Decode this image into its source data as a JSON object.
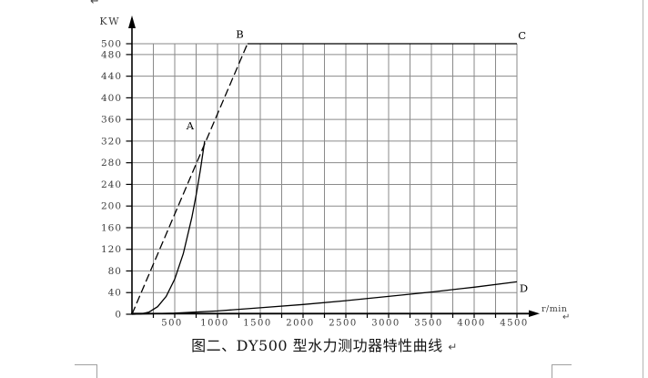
{
  "page": {
    "top_paragraph_mark": "↵",
    "caption": "图二、DY500 型水力测功器特性曲线",
    "caption_paragraph_mark": "↵",
    "axis_paragraph_mark": "↵"
  },
  "chart_data": {
    "type": "line",
    "title": "图二、DY500 型水力测功器特性曲线",
    "xlabel": "r/min",
    "ylabel": "KW",
    "xlim": [
      0,
      4500
    ],
    "ylim": [
      0,
      500
    ],
    "x_tick_labels": [
      500,
      1000,
      1500,
      2000,
      2500,
      3000,
      3500,
      4000,
      4500
    ],
    "x_minor_grid_step": 250,
    "y_ticks": [
      0,
      40,
      80,
      120,
      160,
      200,
      240,
      280,
      320,
      360,
      400,
      440,
      480,
      500
    ],
    "grid": true,
    "legend": "none",
    "series": [
      {
        "name": "A",
        "description": "full-water power curve",
        "style": "solid",
        "points": [
          [
            0,
            0
          ],
          [
            100,
            0.5
          ],
          [
            200,
            4
          ],
          [
            300,
            14
          ],
          [
            400,
            33
          ],
          [
            500,
            65
          ],
          [
            600,
            112
          ],
          [
            700,
            179
          ],
          [
            750,
            220
          ],
          [
            800,
            267
          ],
          [
            850,
            320
          ]
        ]
      },
      {
        "name": "B",
        "description": "constant max torque line",
        "style": "dashed",
        "points": [
          [
            0,
            0
          ],
          [
            1350,
            500
          ]
        ]
      },
      {
        "name": "C",
        "description": "constant max power line 500 KW",
        "style": "solid",
        "points": [
          [
            1350,
            500
          ],
          [
            4500,
            500
          ]
        ]
      },
      {
        "name": "D",
        "description": "minimum water residual curve",
        "style": "solid",
        "points": [
          [
            0,
            0
          ],
          [
            500,
            2
          ],
          [
            1000,
            6
          ],
          [
            1500,
            12
          ],
          [
            2000,
            18
          ],
          [
            2500,
            25
          ],
          [
            3000,
            33
          ],
          [
            3500,
            41
          ],
          [
            4000,
            50
          ],
          [
            4500,
            60
          ]
        ]
      }
    ],
    "annotations": [
      {
        "label": "A",
        "rpm": 680,
        "kw": 342
      },
      {
        "label": "B",
        "rpm": 1260,
        "kw": 511
      },
      {
        "label": "C",
        "rpm": 4560,
        "kw": 508
      },
      {
        "label": "D",
        "rpm": 4580,
        "kw": 41
      }
    ]
  },
  "colors": {
    "grid": "#8a8a8a",
    "axis": "#000000",
    "curve": "#000000",
    "tick_text": "#3d3d3d",
    "boundary_mark": "#a0a0a0"
  }
}
